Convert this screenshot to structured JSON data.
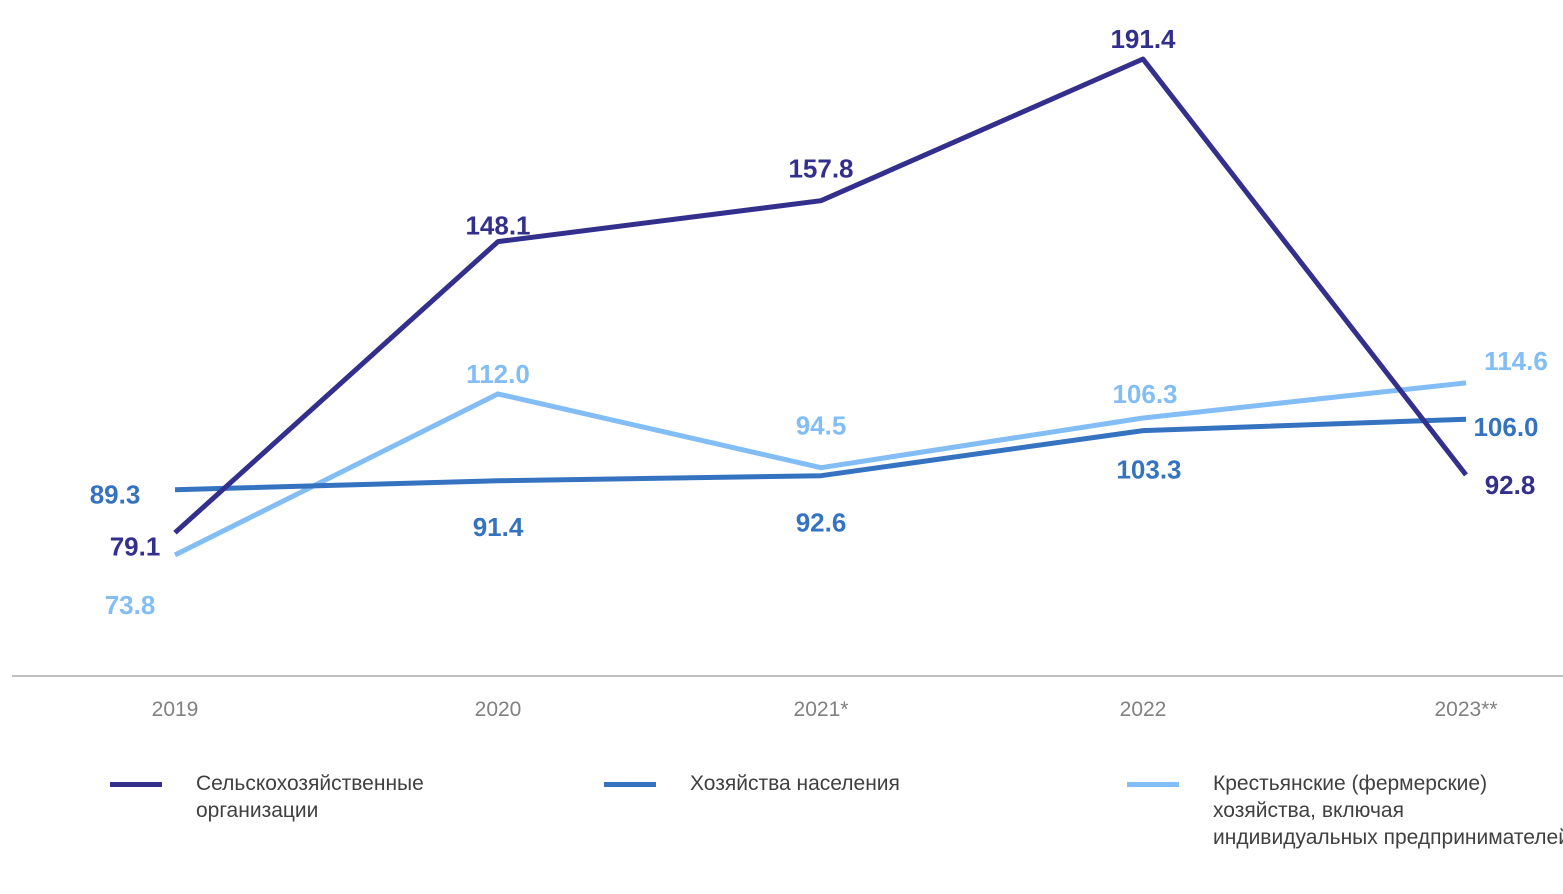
{
  "chart_data": {
    "type": "line",
    "categories": [
      "2019",
      "2020",
      "2021*",
      "2022",
      "2023**"
    ],
    "series": [
      {
        "name": "Сельскохозяйственные организации",
        "values": [
          79.1,
          148.1,
          157.8,
          191.4,
          92.8
        ],
        "color": "#32308C"
      },
      {
        "name": "Хозяйства населения",
        "values": [
          89.3,
          91.4,
          92.6,
          103.3,
          106.0
        ],
        "color": "#3572C0"
      },
      {
        "name": "Крестьянские (фермерские) хозяйства, включая индивидуальных предпринимателей",
        "values": [
          73.8,
          112.0,
          94.5,
          106.3,
          114.6
        ],
        "color": "#82BDF5"
      }
    ],
    "xlabel": "",
    "ylabel": "",
    "grid": false,
    "legend_position": "bottom",
    "axis_color": "#BFBFBF",
    "tick_label_color": "#808080"
  },
  "legend": {
    "series1_label": "Сельскохозяйственные организации",
    "series2_label": "Хозяйства населения",
    "series3_label": "Крестьянские (фермерские) хозяйства, включая индивидуальных предпринимателей"
  }
}
